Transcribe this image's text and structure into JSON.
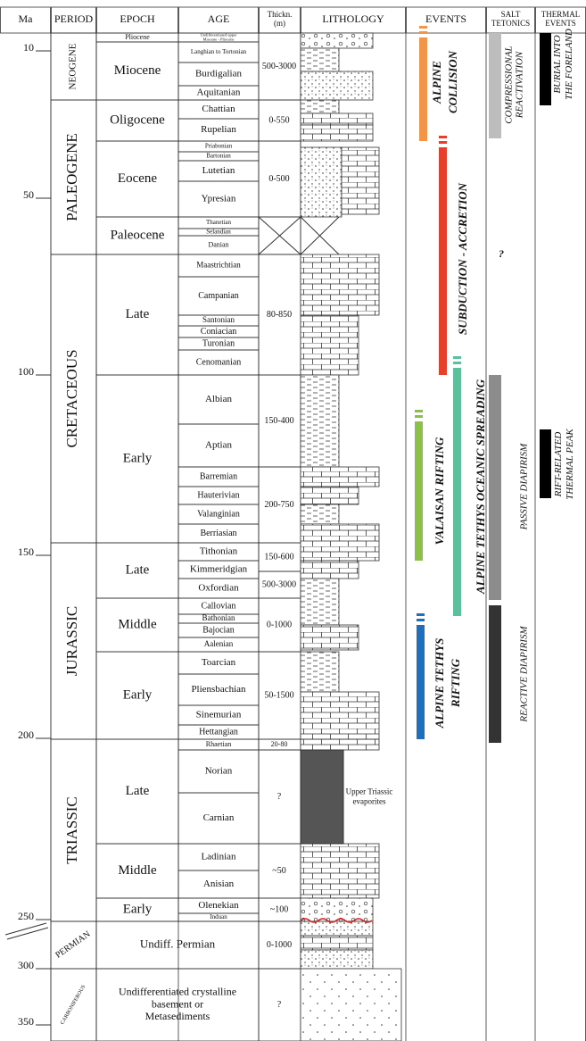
{
  "header": {
    "ma": "Ma",
    "period": "PERIOD",
    "epoch": "EPOCH",
    "age": "AGE",
    "thickness": [
      "Thickn.",
      "(m)"
    ],
    "lithology": "LITHOLOGY",
    "events": "EVENTS",
    "salt_tectonics": [
      "SALT",
      "TETONICS"
    ],
    "thermal_events": [
      "THERMAL",
      "EVENTS"
    ]
  },
  "ma_ticks": [
    10,
    50,
    100,
    150,
    200,
    250,
    300,
    350
  ],
  "periods": [
    "NEOGENE",
    "PALEOGENE",
    "CRETACEOUS",
    "JURASSIC",
    "TRIASSIC",
    "PERMIAN",
    "CARBONIFEROUS"
  ],
  "epochs": [
    "Pliocene",
    "Miocene",
    "Oligocene",
    "Eocene",
    "Paleocene",
    "Late",
    "Early",
    "Late",
    "Middle",
    "Early",
    "Late",
    "Middle",
    "Early",
    "Undiff. Permian",
    [
      "Undifferentiated crystalline",
      "basement or",
      "Metasediments"
    ]
  ],
  "ages": [
    [
      "Undifferentiated upper",
      "Miocene - Pliocene"
    ],
    "Langhian to Tortonian",
    "Burdigalian",
    "Aquitanian",
    "Chattian",
    "Rupelian",
    "Priabonian",
    "Bartonian",
    "Lutetian",
    "Ypresian",
    "Thanetian",
    "Selandian",
    "Danian",
    "Maastrichtian",
    "Campanian",
    "Santonian",
    "Coniacian",
    "Turonian",
    "Cenomanian",
    "Albian",
    "Aptian",
    "Barremian",
    "Hauterivian",
    "Valanginian",
    "Berriasian",
    "Tithonian",
    "Kimmeridgian",
    "Oxfordian",
    "Callovian",
    "Bathonian",
    "Bajocian",
    "Aalenian",
    "Toarcian",
    "Pliensbachian",
    "Sinemurian",
    "Hettangian",
    "Rhaetian",
    "Norian",
    "Carnian",
    "Ladinian",
    "Anisian",
    "Olenekian",
    "Induan"
  ],
  "thickness": [
    "500-3000",
    "0-550",
    "0-500",
    "80-850",
    "150-400",
    "200-750",
    "150-600",
    "500-3000",
    "0-1000",
    "50-1500",
    "20-80",
    "?",
    "~50",
    "~100",
    "0-1000",
    "?"
  ],
  "lithology_note": [
    "Upper Triassic",
    "evaporites"
  ],
  "events": [
    {
      "label": [
        "ALPINE",
        "COLLISION"
      ],
      "color": "#f0954a"
    },
    {
      "label": [
        "SUBDUCTION - ACCRETION"
      ],
      "color": "#e5402b"
    },
    {
      "label": [
        "ALPINE TETHYS OCEANIC SPREADING"
      ],
      "color": "#5dbf9c"
    },
    {
      "label": [
        "VALAISAN RIFTING"
      ],
      "color": "#8cc04a"
    },
    {
      "label": [
        "ALPINE TETHYS",
        "RIFTING"
      ],
      "color": "#1e6fbe"
    }
  ],
  "salt_tectonics": [
    {
      "label": [
        "COMPRESSIONAL",
        "REACTIVATION"
      ],
      "color": "#bdbdbd"
    },
    {
      "label": [
        "?"
      ]
    },
    {
      "label": [
        "PASSIVE DIAPIRISM"
      ],
      "color": "#8c8c8c"
    },
    {
      "label": [
        "REACTIVE DIAPIRISM"
      ],
      "color": "#333333"
    }
  ],
  "thermal_events": [
    {
      "label": [
        "BURIAL INTO",
        "THE FORELAND"
      ],
      "color": "#000000"
    },
    {
      "label": [
        "RIFT-RELATED",
        "THERMAL PEAK"
      ],
      "color": "#000000"
    }
  ]
}
